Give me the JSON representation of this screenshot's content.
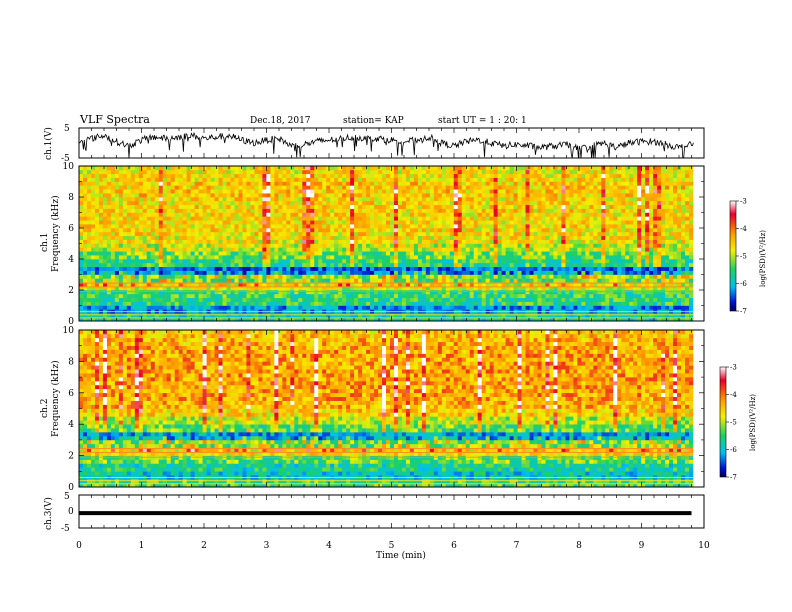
{
  "header": {
    "title": "VLF Spectra",
    "date": "Dec.18, 2017",
    "station": "station= KAP",
    "start": "start  UT =   1 : 20: 1"
  },
  "chart_data": [
    {
      "type": "line",
      "panel": "ch1-waveform",
      "ylabel": "ch.1(V)",
      "ylim": [
        -5,
        5
      ],
      "xlim": [
        0,
        10
      ],
      "yticks": [
        "5",
        "-5"
      ],
      "x": [
        0,
        0.2,
        0.4,
        0.6,
        0.8,
        1.0,
        1.2,
        1.4,
        1.6,
        1.8,
        2.0,
        2.2,
        2.4,
        2.6,
        2.8,
        3.0,
        3.2,
        3.4,
        3.6,
        3.8,
        4.0,
        4.2,
        4.4,
        4.6,
        4.8,
        5.0,
        5.2,
        5.4,
        5.6,
        5.8,
        6.0,
        6.2,
        6.4,
        6.6,
        6.8,
        7.0,
        7.2,
        7.4,
        7.6,
        7.8,
        8.0,
        8.2,
        8.4,
        8.6,
        8.8,
        9.0,
        9.2,
        9.4,
        9.6,
        9.8
      ],
      "values": [
        0.5,
        1.5,
        2.5,
        0.5,
        -1,
        1,
        2,
        1.5,
        2,
        2.5,
        1.5,
        2,
        2.5,
        1,
        0,
        1,
        1.5,
        -1,
        -0.5,
        0.5,
        1,
        1.5,
        2,
        1.5,
        1.5,
        1,
        0.5,
        1,
        2,
        0,
        -1,
        0.5,
        1,
        0,
        -1,
        -0.5,
        -1,
        -1.5,
        -1,
        -0.5,
        -2,
        -1,
        0,
        -1.5,
        0,
        0.5,
        0.5,
        -0.5,
        -1.5,
        -0.5
      ]
    },
    {
      "type": "heatmap",
      "panel": "ch1-spectrogram",
      "ylabel": "ch.1",
      "ylabel2": "Frequency (kHz)",
      "ylim": [
        0,
        10
      ],
      "xlim": [
        0,
        10
      ],
      "yticks": [
        "0",
        "2",
        "4",
        "6",
        "8",
        "10"
      ],
      "zlabel": "log(PSD)(V²/Hz)",
      "zlim": [
        -7,
        -3
      ],
      "cbticks": [
        "-3",
        "-4",
        "-5",
        "-6",
        "-7"
      ],
      "freq_kHz": [
        0.25,
        0.75,
        1.25,
        1.75,
        2.25,
        2.75,
        3.25,
        3.75,
        4.25,
        4.75,
        5.25,
        5.75,
        6.25,
        6.75,
        7.25,
        7.75,
        8.25,
        8.75,
        9.25,
        9.75
      ],
      "mean_log_psd": [
        -5.5,
        -6,
        -5.3,
        -5.2,
        -4.5,
        -5,
        -6.2,
        -5.3,
        -5,
        -4.6,
        -4.4,
        -4.3,
        -4.3,
        -4.3,
        -4.3,
        -4.3,
        -4.2,
        -4.2,
        -4.3,
        -4.4
      ]
    },
    {
      "type": "heatmap",
      "panel": "ch2-spectrogram",
      "ylabel": "ch.2",
      "ylabel2": "Frequency (kHz)",
      "ylim": [
        0,
        10
      ],
      "xlim": [
        0,
        10
      ],
      "yticks": [
        "0",
        "2",
        "4",
        "6",
        "8",
        "10"
      ],
      "zlabel": "log(PSD)(V²/Hz)",
      "zlim": [
        -7,
        -3
      ],
      "cbticks": [
        "-3",
        "-4",
        "-5",
        "-6",
        "-7"
      ],
      "freq_kHz": [
        0.25,
        0.75,
        1.25,
        1.75,
        2.25,
        2.75,
        3.25,
        3.75,
        4.25,
        4.75,
        5.25,
        5.75,
        6.25,
        6.75,
        7.25,
        7.75,
        8.25,
        8.75,
        9.25,
        9.75
      ],
      "mean_log_psd": [
        -5.3,
        -5.8,
        -5.6,
        -5.2,
        -4.5,
        -5.2,
        -6.1,
        -5.2,
        -4.8,
        -4.4,
        -4.2,
        -4.1,
        -4.1,
        -4.1,
        -4.1,
        -4.1,
        -4.1,
        -4.1,
        -4.2,
        -4.3
      ]
    },
    {
      "type": "line",
      "panel": "ch3-waveform",
      "ylabel": "ch.3(V)",
      "ylim": [
        -5,
        5
      ],
      "xlim": [
        0,
        10
      ],
      "yticks": [
        "5",
        "0",
        "-5"
      ],
      "x": [
        0,
        9.8
      ],
      "values": [
        -0.5,
        -0.5
      ]
    }
  ],
  "xaxis": {
    "label": "Time  (min)",
    "ticks": [
      "0",
      "1",
      "2",
      "3",
      "4",
      "5",
      "6",
      "7",
      "8",
      "9",
      "10"
    ]
  }
}
